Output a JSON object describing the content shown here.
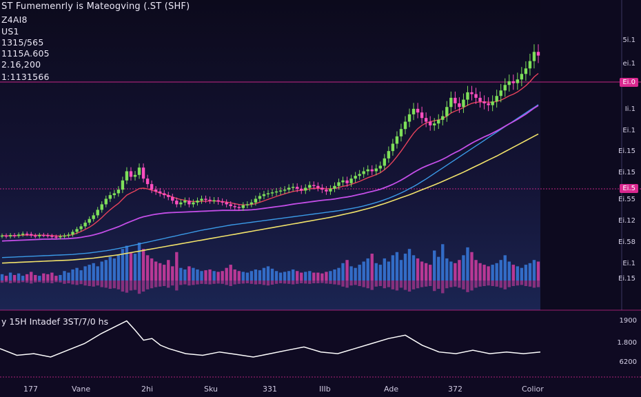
{
  "header": {
    "title": "ST Fumemenrly is Mateogving (.ST (SHF)",
    "line1": "Z4AI8",
    "line2": "US1",
    "line3": "1315/565",
    "line4": "1115A.605",
    "line5": "2.16,200",
    "line6": "1:1131566"
  },
  "price_axis": {
    "ticks": [
      "5i.1",
      "ei.1",
      "Ei.0",
      "Ii.1",
      "Ei.1",
      "Ei.15",
      "Ei.15",
      "Ei.55",
      "Ei.12",
      "Ei.58",
      "Ei.1",
      "Ei.15"
    ],
    "tag_top": "Ei.0",
    "tag_mid": "Ei.5"
  },
  "oscillator": {
    "title": "y 15H Intadef 3ST/7/0 hs",
    "ticks": [
      "1900",
      "1.800",
      "6200"
    ]
  },
  "x_axis": {
    "labels": [
      "177",
      "Vane",
      "2hi",
      "Sku",
      "331",
      "IIIb",
      "Ade",
      "372",
      "Colior"
    ]
  },
  "colors": {
    "background": "#0d0a1f",
    "up_candle": "#7ee05a",
    "down_candle": "#ff4fc0",
    "ma_red": "#e8435c",
    "ma_purple": "#c44ee8",
    "ma_blue": "#3b9be8",
    "ma_yellow": "#f2e36b",
    "volume_blue": "#3a7fe6",
    "volume_magenta": "#e03ea8",
    "oscillator_line": "#ffffff",
    "hline": "#d9288f"
  },
  "chart_data": [
    {
      "type": "candlestick",
      "title": "ST Fumemenrly is Mateogving (.ST (SHF)",
      "x": [
        0,
        1,
        2,
        3,
        4,
        5,
        6,
        7,
        8,
        9,
        10,
        11,
        12,
        13,
        14,
        15,
        16,
        17,
        18,
        19,
        20,
        21,
        22,
        23,
        24,
        25,
        26,
        27,
        28,
        29,
        30,
        31,
        32,
        33,
        34,
        35,
        36,
        37,
        38,
        39,
        40,
        41,
        42,
        43,
        44,
        45,
        46,
        47,
        48,
        49,
        50,
        51,
        52,
        53,
        54,
        55,
        56,
        57,
        58,
        59,
        60,
        61,
        62,
        63,
        64,
        65,
        66,
        67,
        68,
        69,
        70,
        71,
        72,
        73,
        74,
        75,
        76,
        77,
        78,
        79,
        80,
        81,
        82,
        83,
        84,
        85,
        86,
        87,
        88,
        89,
        90,
        91,
        92,
        93,
        94,
        95,
        96,
        97,
        98,
        99,
        100,
        101,
        102,
        103,
        104,
        105,
        106,
        107,
        108,
        109,
        110,
        111,
        112,
        113,
        114,
        115,
        116,
        117,
        118,
        119,
        120,
        121,
        122,
        123,
        124,
        125,
        126,
        127,
        128,
        129
      ],
      "close": [
        3.8,
        3.75,
        3.82,
        3.78,
        3.85,
        3.9,
        3.88,
        3.8,
        3.76,
        3.83,
        3.82,
        3.78,
        3.74,
        3.7,
        3.76,
        3.8,
        3.85,
        4.0,
        4.15,
        4.3,
        4.5,
        4.7,
        4.9,
        5.2,
        5.5,
        5.8,
        6.0,
        6.1,
        6.3,
        6.8,
        7.3,
        7.0,
        7.1,
        7.5,
        6.9,
        6.6,
        6.3,
        6.2,
        6.1,
        6.0,
        5.9,
        5.7,
        5.5,
        5.6,
        5.7,
        5.5,
        5.6,
        5.7,
        5.8,
        5.75,
        5.7,
        5.72,
        5.65,
        5.6,
        5.5,
        5.4,
        5.35,
        5.3,
        5.45,
        5.5,
        5.6,
        5.8,
        5.95,
        6.05,
        6.1,
        6.15,
        6.2,
        6.25,
        6.3,
        6.4,
        6.45,
        6.35,
        6.25,
        6.4,
        6.55,
        6.5,
        6.4,
        6.3,
        6.2,
        6.35,
        6.5,
        6.7,
        6.8,
        6.65,
        6.9,
        7.05,
        7.15,
        7.3,
        7.4,
        7.3,
        7.45,
        7.6,
        8.0,
        8.4,
        8.8,
        9.2,
        9.6,
        10.0,
        10.4,
        10.7,
        10.5,
        10.2,
        10.0,
        9.8,
        9.9,
        10.1,
        10.3,
        10.8,
        11.3,
        11.0,
        10.8,
        11.2,
        11.6,
        11.5,
        11.3,
        11.1,
        11.0,
        10.9,
        11.1,
        11.4,
        11.7,
        12.0,
        12.2,
        12.1,
        12.3,
        12.6,
        12.9,
        13.3,
        13.8,
        13.6
      ],
      "ma_fast": [
        3.8,
        3.78,
        3.79,
        3.79,
        3.8,
        3.82,
        3.83,
        3.82,
        3.81,
        3.82,
        3.82,
        3.81,
        3.8,
        3.78,
        3.77,
        3.78,
        3.8,
        3.85,
        3.93,
        4.02,
        4.13,
        4.25,
        4.4,
        4.58,
        4.78,
        5.0,
        5.2,
        5.38,
        5.55,
        5.78,
        6.0,
        6.12,
        6.23,
        6.36,
        6.38,
        6.34,
        6.27,
        6.2,
        6.12,
        6.05,
        5.98,
        5.9,
        5.82,
        5.76,
        5.72,
        5.67,
        5.65,
        5.65,
        5.66,
        5.67,
        5.68,
        5.68,
        5.67,
        5.65,
        5.62,
        5.58,
        5.53,
        5.49,
        5.47,
        5.47,
        5.49,
        5.54,
        5.61,
        5.69,
        5.77,
        5.85,
        5.93,
        6.0,
        6.07,
        6.14,
        6.2,
        6.24,
        6.26,
        6.29,
        6.34,
        6.37,
        6.38,
        6.37,
        6.35,
        6.35,
        6.37,
        6.42,
        6.48,
        6.52,
        6.59,
        6.67,
        6.75,
        6.85,
        6.95,
        7.03,
        7.12,
        7.22,
        7.38,
        7.58,
        7.82,
        8.1,
        8.4,
        8.72,
        9.05,
        9.37,
        9.62,
        9.8,
        9.93,
        10.0,
        10.05,
        10.1,
        10.17,
        10.3,
        10.47,
        10.58,
        10.66,
        10.77,
        10.9,
        11.0,
        11.05,
        11.08,
        11.08,
        11.06,
        11.06,
        11.1,
        11.17,
        11.28,
        11.41,
        11.5,
        11.62,
        11.78,
        11.96,
        12.18,
        12.44,
        12.63
      ],
      "ma_mid": [
        3.5,
        3.51,
        3.52,
        3.53,
        3.54,
        3.55,
        3.56,
        3.57,
        3.58,
        3.59,
        3.6,
        3.6,
        3.61,
        3.61,
        3.62,
        3.62,
        3.63,
        3.65,
        3.67,
        3.7,
        3.74,
        3.78,
        3.83,
        3.89,
        3.96,
        4.04,
        4.12,
        4.2,
        4.28,
        4.38,
        4.48,
        4.57,
        4.66,
        4.75,
        4.82,
        4.87,
        4.92,
        4.96,
        4.99,
        5.02,
        5.04,
        5.05,
        5.06,
        5.07,
        5.08,
        5.09,
        5.1,
        5.11,
        5.12,
        5.13,
        5.14,
        5.15,
        5.16,
        5.17,
        5.17,
        5.17,
        5.17,
        5.17,
        5.18,
        5.19,
        5.2,
        5.22,
        5.25,
        5.28,
        5.31,
        5.34,
        5.37,
        5.4,
        5.43,
        5.47,
        5.51,
        5.54,
        5.57,
        5.6,
        5.63,
        5.66,
        5.69,
        5.72,
        5.74,
        5.76,
        5.79,
        5.83,
        5.87,
        5.9,
        5.94,
        5.99,
        6.04,
        6.09,
        6.15,
        6.2,
        6.26,
        6.32,
        6.4,
        6.49,
        6.59,
        6.7,
        6.82,
        6.95,
        7.09,
        7.23,
        7.36,
        7.48,
        7.58,
        7.67,
        7.76,
        7.85,
        7.95,
        8.07,
        8.2,
        8.32,
        8.43,
        8.56,
        8.7,
        8.83,
        8.95,
        9.06,
        9.17,
        9.27,
        9.38,
        9.5,
        9.62,
        9.75,
        9.88,
        10.0,
        10.13,
        10.27,
        10.41,
        10.57,
        10.74,
        10.88
      ],
      "ma_slow_blue": [
        2.6,
        2.61,
        2.62,
        2.63,
        2.64,
        2.65,
        2.66,
        2.67,
        2.68,
        2.69,
        2.7,
        2.71,
        2.72,
        2.73,
        2.74,
        2.75,
        2.76,
        2.77,
        2.79,
        2.81,
        2.83,
        2.85,
        2.88,
        2.91,
        2.94,
        2.97,
        3.01,
        3.05,
        3.09,
        3.14,
        3.19,
        3.24,
        3.29,
        3.34,
        3.39,
        3.44,
        3.49,
        3.54,
        3.59,
        3.64,
        3.69,
        3.74,
        3.79,
        3.84,
        3.89,
        3.94,
        3.99,
        4.04,
        4.09,
        4.13,
        4.17,
        4.21,
        4.25,
        4.29,
        4.33,
        4.37,
        4.4,
        4.43,
        4.46,
        4.49,
        4.52,
        4.55,
        4.58,
        4.61,
        4.64,
        4.67,
        4.7,
        4.73,
        4.76,
        4.79,
        4.82,
        4.85,
        4.88,
        4.91,
        4.94,
        4.97,
        5.0,
        5.03,
        5.06,
        5.09,
        5.12,
        5.15,
        5.19,
        5.23,
        5.27,
        5.31,
        5.36,
        5.41,
        5.47,
        5.53,
        5.6,
        5.67,
        5.75,
        5.83,
        5.92,
        6.02,
        6.12,
        6.23,
        6.35,
        6.47,
        6.6,
        6.74,
        6.88,
        7.03,
        7.18,
        7.33,
        7.48,
        7.63,
        7.78,
        7.93,
        8.08,
        8.23,
        8.38,
        8.53,
        8.68,
        8.83,
        8.98,
        9.13,
        9.28,
        9.43,
        9.58,
        9.73,
        9.88,
        10.03,
        10.18,
        10.33,
        10.48,
        10.63,
        10.78,
        10.93
      ],
      "ma_slow_yellow": [
        2.3,
        2.31,
        2.32,
        2.33,
        2.34,
        2.35,
        2.36,
        2.37,
        2.38,
        2.39,
        2.4,
        2.41,
        2.42,
        2.43,
        2.44,
        2.45,
        2.46,
        2.47,
        2.49,
        2.51,
        2.53,
        2.55,
        2.57,
        2.6,
        2.63,
        2.66,
        2.69,
        2.72,
        2.75,
        2.79,
        2.83,
        2.87,
        2.91,
        2.95,
        2.99,
        3.03,
        3.07,
        3.11,
        3.15,
        3.19,
        3.23,
        3.27,
        3.31,
        3.35,
        3.39,
        3.43,
        3.47,
        3.51,
        3.55,
        3.59,
        3.63,
        3.67,
        3.71,
        3.75,
        3.79,
        3.83,
        3.87,
        3.91,
        3.95,
        3.99,
        4.03,
        4.07,
        4.11,
        4.15,
        4.19,
        4.23,
        4.27,
        4.31,
        4.35,
        4.39,
        4.43,
        4.47,
        4.51,
        4.55,
        4.59,
        4.63,
        4.67,
        4.71,
        4.75,
        4.79,
        4.84,
        4.89,
        4.94,
        4.99,
        5.04,
        5.09,
        5.15,
        5.21,
        5.27,
        5.33,
        5.4,
        5.47,
        5.54,
        5.62,
        5.7,
        5.78,
        5.86,
        5.94,
        6.02,
        6.11,
        6.2,
        6.29,
        6.38,
        6.47,
        6.56,
        6.65,
        6.75,
        6.85,
        6.95,
        7.05,
        7.15,
        7.25,
        7.36,
        7.47,
        7.58,
        7.69,
        7.8,
        7.91,
        8.02,
        8.13,
        8.25,
        8.37,
        8.49,
        8.61,
        8.73,
        8.85,
        8.97,
        9.09,
        9.21,
        9.33
      ],
      "volume": [
        0.4,
        0.3,
        0.5,
        0.35,
        0.45,
        0.3,
        0.4,
        0.55,
        0.35,
        0.3,
        0.45,
        0.4,
        0.5,
        0.3,
        0.35,
        0.6,
        0.5,
        0.7,
        0.8,
        0.65,
        0.9,
        1.0,
        1.1,
        0.9,
        1.2,
        1.3,
        1.5,
        1.4,
        1.6,
        2.0,
        2.2,
        1.8,
        1.7,
        2.4,
        2.0,
        1.6,
        1.4,
        1.2,
        1.1,
        1.0,
        1.3,
        0.9,
        1.8,
        0.8,
        0.7,
        0.9,
        0.8,
        0.7,
        0.6,
        0.65,
        0.7,
        0.6,
        0.55,
        0.6,
        0.8,
        1.0,
        0.7,
        0.6,
        0.55,
        0.5,
        0.6,
        0.7,
        0.65,
        0.8,
        0.9,
        0.75,
        0.6,
        0.5,
        0.55,
        0.6,
        0.7,
        0.6,
        0.5,
        0.55,
        0.6,
        0.5,
        0.5,
        0.45,
        0.55,
        0.6,
        0.7,
        0.8,
        1.1,
        1.3,
        0.9,
        0.8,
        1.0,
        1.2,
        1.4,
        1.7,
        1.1,
        1.0,
        1.4,
        1.2,
        1.6,
        1.8,
        1.3,
        1.7,
        2.0,
        1.6,
        1.4,
        1.2,
        1.1,
        1.0,
        1.9,
        1.5,
        2.3,
        1.4,
        1.2,
        1.1,
        1.3,
        1.6,
        2.1,
        1.8,
        1.3,
        1.1,
        1.0,
        0.9,
        1.0,
        1.1,
        1.3,
        1.6,
        1.2,
        1.0,
        0.9,
        0.8,
        1.0,
        1.1,
        1.3,
        1.2
      ],
      "ylim": [
        1.8,
        15.5
      ]
    },
    {
      "type": "line",
      "title": "y 15H Intadef 3ST/7/0 hs",
      "x": [
        0,
        4,
        8,
        12,
        16,
        20,
        24,
        28,
        30,
        32,
        34,
        36,
        38,
        40,
        44,
        48,
        52,
        56,
        60,
        64,
        68,
        72,
        76,
        80,
        84,
        88,
        92,
        96,
        100,
        104,
        108,
        112,
        116,
        120,
        124,
        128
      ],
      "values": [
        1820,
        1780,
        1790,
        1770,
        1810,
        1850,
        1910,
        1960,
        1985,
        1930,
        1870,
        1880,
        1840,
        1820,
        1790,
        1780,
        1800,
        1785,
        1770,
        1790,
        1810,
        1830,
        1800,
        1790,
        1820,
        1850,
        1880,
        1900,
        1840,
        1800,
        1790,
        1810,
        1790,
        1800,
        1790,
        1800
      ],
      "ylim": [
        1700,
        2000
      ]
    }
  ]
}
